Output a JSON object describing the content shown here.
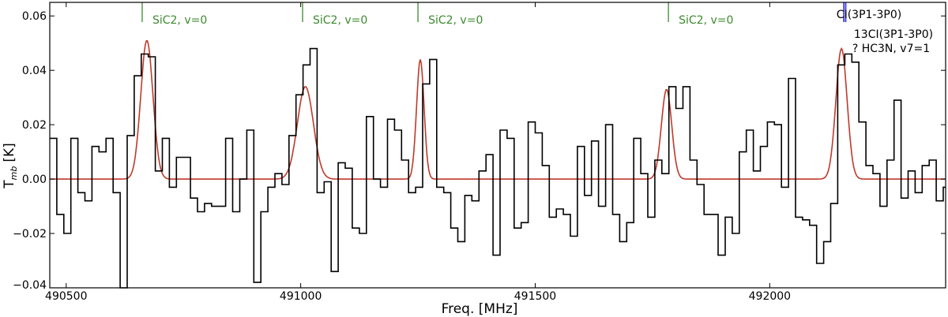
{
  "chart_data": {
    "type": "line",
    "title": "",
    "xlabel": "Freq. [MHz]",
    "ylabel_main": "T",
    "ylabel_sub": "mb",
    "ylabel_unit": "[K]",
    "xlim": [
      490465,
      492375
    ],
    "ylim": [
      -0.04,
      0.065
    ],
    "xticks": [
      490500,
      491000,
      491500,
      492000
    ],
    "yticks": [
      0.06,
      0.04,
      0.02,
      0.0,
      -0.02,
      -0.04
    ],
    "ytick_labels": [
      "0.06",
      "0.04",
      "0.02",
      "0.00",
      "−0.02",
      "−0.04"
    ],
    "series": [
      {
        "name": "observed",
        "style": "steps",
        "color": "#000000",
        "x": [
          490465,
          490480,
          490495,
          490510,
          490525,
          490540,
          490555,
          490570,
          490585,
          490600,
          490615,
          490630,
          490645,
          490660,
          490675,
          490690,
          490705,
          490720,
          490735,
          490750,
          490765,
          490780,
          490795,
          490810,
          490825,
          490840,
          490855,
          490870,
          490885,
          490900,
          490915,
          490930,
          490945,
          490960,
          490975,
          490990,
          491005,
          491020,
          491035,
          491050,
          491065,
          491080,
          491095,
          491110,
          491125,
          491140,
          491155,
          491170,
          491185,
          491200,
          491215,
          491230,
          491245,
          491260,
          491275,
          491290,
          491305,
          491320,
          491335,
          491350,
          491365,
          491380,
          491395,
          491410,
          491425,
          491440,
          491455,
          491470,
          491485,
          491500,
          491515,
          491530,
          491545,
          491560,
          491575,
          491590,
          491605,
          491620,
          491635,
          491650,
          491665,
          491680,
          491695,
          491710,
          491725,
          491740,
          491755,
          491770,
          491785,
          491800,
          491815,
          491830,
          491845,
          491860,
          491875,
          491890,
          491905,
          491920,
          491935,
          491950,
          491965,
          491980,
          491995,
          492010,
          492025,
          492040,
          492055,
          492070,
          492085,
          492100,
          492115,
          492130,
          492145,
          492160,
          492175,
          492190,
          492205,
          492220,
          492235,
          492250,
          492265,
          492280,
          492295,
          492310,
          492325,
          492340,
          492355,
          492370
        ],
        "y": [
          0.015,
          -0.013,
          -0.02,
          0.015,
          -0.005,
          -0.008,
          0.012,
          0.01,
          0.015,
          -0.005,
          -0.04,
          0.016,
          0.038,
          0.046,
          0.045,
          0.003,
          0.015,
          -0.003,
          0.008,
          0.008,
          -0.007,
          -0.012,
          -0.009,
          -0.01,
          -0.01,
          0.015,
          -0.012,
          0.0,
          0.018,
          -0.038,
          -0.012,
          -0.003,
          0.002,
          -0.002,
          0.016,
          0.031,
          0.042,
          0.048,
          -0.005,
          -0.001,
          -0.034,
          0.006,
          0.004,
          -0.018,
          -0.02,
          0.023,
          0.0,
          -0.003,
          0.022,
          0.018,
          0.007,
          -0.005,
          -0.003,
          0.035,
          0.044,
          -0.003,
          -0.005,
          -0.018,
          -0.023,
          -0.006,
          -0.008,
          0.003,
          0.009,
          -0.028,
          0.018,
          0.015,
          -0.018,
          -0.016,
          0.021,
          0.017,
          0.005,
          -0.014,
          -0.011,
          -0.013,
          -0.021,
          0.012,
          -0.006,
          0.014,
          -0.01,
          0.02,
          -0.013,
          -0.023,
          -0.016,
          0.015,
          0.002,
          -0.014,
          0.007,
          0.002,
          0.034,
          0.026,
          0.034,
          0.007,
          -0.002,
          -0.013,
          -0.013,
          -0.028,
          -0.014,
          -0.02,
          0.01,
          0.018,
          0.003,
          0.012,
          0.021,
          0.02,
          -0.003,
          0.037,
          -0.014,
          -0.015,
          -0.017,
          -0.031,
          -0.023,
          -0.009,
          0.042,
          0.046,
          0.043,
          0.021,
          0.005,
          0.002,
          -0.01,
          0.007,
          0.029,
          -0.007,
          0.003,
          -0.005,
          0.005,
          0.007,
          -0.008,
          -0.003
        ],
        "x_end": 492375
      },
      {
        "name": "gaussian fit",
        "style": "line",
        "color": "#c0392b",
        "peaks": [
          {
            "center": 490672,
            "amplitude": 0.051,
            "sigma": 13
          },
          {
            "center": 491010,
            "amplitude": 0.034,
            "sigma": 17
          },
          {
            "center": 491255,
            "amplitude": 0.044,
            "sigma": 8
          },
          {
            "center": 491780,
            "amplitude": 0.033,
            "sigma": 11
          },
          {
            "center": 492153,
            "amplitude": 0.048,
            "sigma": 12
          }
        ]
      }
    ],
    "line_markers": [
      {
        "freq": 490662,
        "label": "SiC2, v=0",
        "color": "#3c8a2e"
      },
      {
        "freq": 491004,
        "label": "SiC2, v=0",
        "color": "#3c8a2e"
      },
      {
        "freq": 491250,
        "label": "SiC2, v=0",
        "color": "#3c8a2e"
      },
      {
        "freq": 491784,
        "label": "SiC2, v=0",
        "color": "#3c8a2e"
      }
    ],
    "species_markers": [
      {
        "freq": 492158,
        "color": "#2c2cd8"
      },
      {
        "freq": 492162,
        "color": "#2c2cd8"
      }
    ],
    "legend": [
      {
        "label": "CI(3P1-3P0)",
        "color": "#000000"
      },
      {
        "label": "13CI(3P1-3P0)",
        "color": "#1f1fe6"
      },
      {
        "label": "? HC3N, v7=1",
        "color": "#6a1b9a"
      }
    ]
  }
}
